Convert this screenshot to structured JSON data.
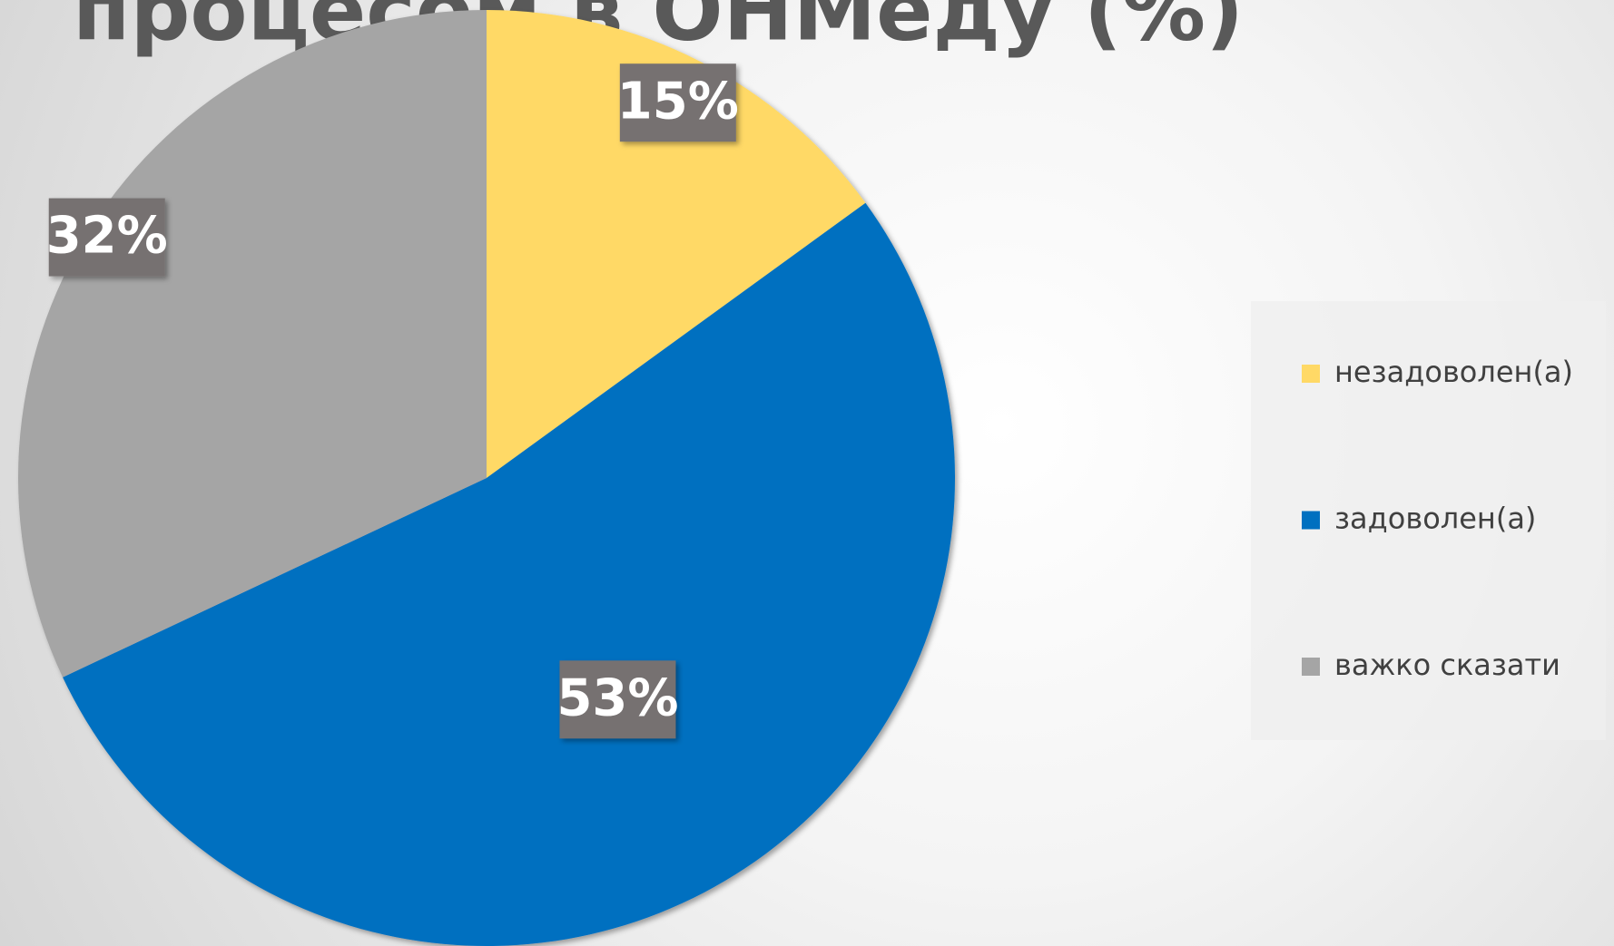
{
  "chart_data": {
    "type": "pie",
    "title": "процесом в ОНМеду (%)",
    "categories": [
      "незадоволен(а)",
      "задоволен(а)",
      "важко сказати"
    ],
    "values": [
      15,
      53,
      32
    ],
    "value_labels": [
      "15%",
      "53%",
      "32%"
    ],
    "colors": [
      "#ffd966",
      "#0070c0",
      "#a5a5a5"
    ],
    "legend": "right"
  }
}
